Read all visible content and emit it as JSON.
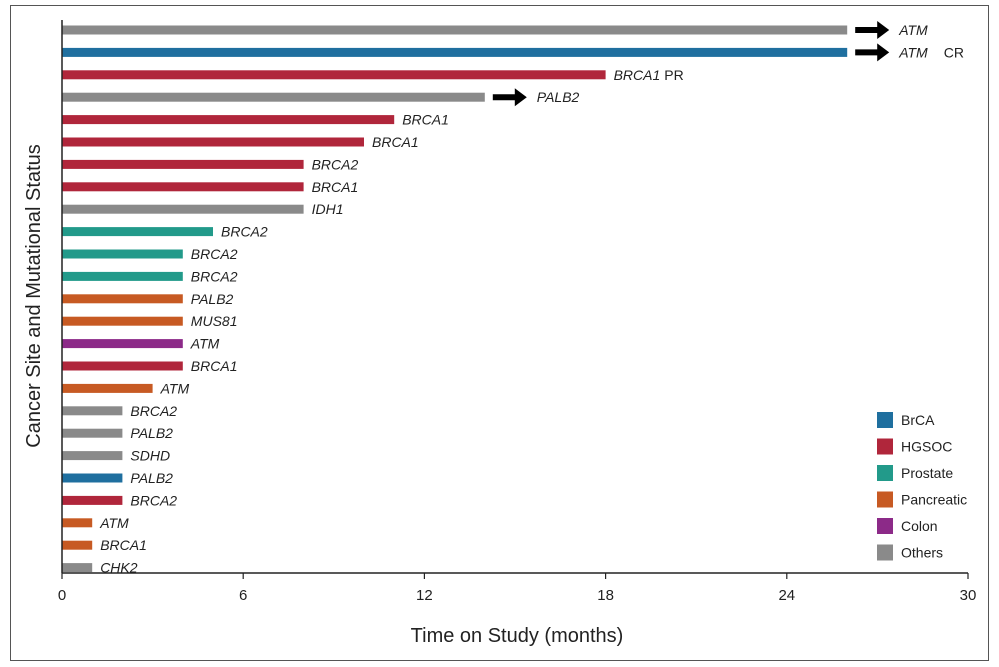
{
  "chart_data": {
    "type": "bar",
    "orientation": "horizontal",
    "xlabel": "Time on Study (months)",
    "ylabel": "Cancer Site and Mutational Status",
    "xlim": [
      0,
      30
    ],
    "xticks": [
      0,
      6,
      12,
      18,
      24,
      30
    ],
    "grid": false,
    "legend_position": "bottom-right",
    "colors": {
      "BrCA": "#1f6f9f",
      "HGSOC": "#b0263b",
      "Prostate": "#229a8a",
      "Pancreatic": "#c75a23",
      "Colon": "#8c2a88",
      "Others": "#8a8a8a"
    },
    "legend": [
      {
        "label": "BrCA",
        "color": "#1f6f9f"
      },
      {
        "label": "HGSOC",
        "color": "#b0263b"
      },
      {
        "label": "Prostate",
        "color": "#229a8a"
      },
      {
        "label": "Pancreatic",
        "color": "#c75a23"
      },
      {
        "label": "Colon",
        "color": "#8c2a88"
      },
      {
        "label": "Others",
        "color": "#8a8a8a"
      }
    ],
    "bars": [
      {
        "gene": "ATM",
        "site": "Others",
        "months": 26,
        "ongoing": true,
        "response": ""
      },
      {
        "gene": "ATM",
        "site": "BrCA",
        "months": 26,
        "ongoing": true,
        "response": "CR"
      },
      {
        "gene": "BRCA1",
        "site": "HGSOC",
        "months": 18,
        "ongoing": false,
        "response": "PR"
      },
      {
        "gene": "PALB2",
        "site": "Others",
        "months": 14,
        "ongoing": true,
        "response": ""
      },
      {
        "gene": "BRCA1",
        "site": "HGSOC",
        "months": 11,
        "ongoing": false,
        "response": ""
      },
      {
        "gene": "BRCA1",
        "site": "HGSOC",
        "months": 10,
        "ongoing": false,
        "response": ""
      },
      {
        "gene": "BRCA2",
        "site": "HGSOC",
        "months": 8,
        "ongoing": false,
        "response": ""
      },
      {
        "gene": "BRCA1",
        "site": "HGSOC",
        "months": 8,
        "ongoing": false,
        "response": ""
      },
      {
        "gene": "IDH1",
        "site": "Others",
        "months": 8,
        "ongoing": false,
        "response": ""
      },
      {
        "gene": "BRCA2",
        "site": "Prostate",
        "months": 5,
        "ongoing": false,
        "response": ""
      },
      {
        "gene": "BRCA2",
        "site": "Prostate",
        "months": 4,
        "ongoing": false,
        "response": ""
      },
      {
        "gene": "BRCA2",
        "site": "Prostate",
        "months": 4,
        "ongoing": false,
        "response": ""
      },
      {
        "gene": "PALB2",
        "site": "Pancreatic",
        "months": 4,
        "ongoing": false,
        "response": ""
      },
      {
        "gene": "MUS81",
        "site": "Pancreatic",
        "months": 4,
        "ongoing": false,
        "response": ""
      },
      {
        "gene": "ATM",
        "site": "Colon",
        "months": 4,
        "ongoing": false,
        "response": ""
      },
      {
        "gene": "BRCA1",
        "site": "HGSOC",
        "months": 4,
        "ongoing": false,
        "response": ""
      },
      {
        "gene": "ATM",
        "site": "Pancreatic",
        "months": 3,
        "ongoing": false,
        "response": ""
      },
      {
        "gene": "BRCA2",
        "site": "Others",
        "months": 2,
        "ongoing": false,
        "response": ""
      },
      {
        "gene": "PALB2",
        "site": "Others",
        "months": 2,
        "ongoing": false,
        "response": ""
      },
      {
        "gene": "SDHD",
        "site": "Others",
        "months": 2,
        "ongoing": false,
        "response": ""
      },
      {
        "gene": "PALB2",
        "site": "BrCA",
        "months": 2,
        "ongoing": false,
        "response": ""
      },
      {
        "gene": "BRCA2",
        "site": "HGSOC",
        "months": 2,
        "ongoing": false,
        "response": ""
      },
      {
        "gene": "ATM",
        "site": "Pancreatic",
        "months": 1,
        "ongoing": false,
        "response": ""
      },
      {
        "gene": "BRCA1",
        "site": "Pancreatic",
        "months": 1,
        "ongoing": false,
        "response": ""
      },
      {
        "gene": "CHK2",
        "site": "Others",
        "months": 1,
        "ongoing": false,
        "response": ""
      }
    ]
  }
}
